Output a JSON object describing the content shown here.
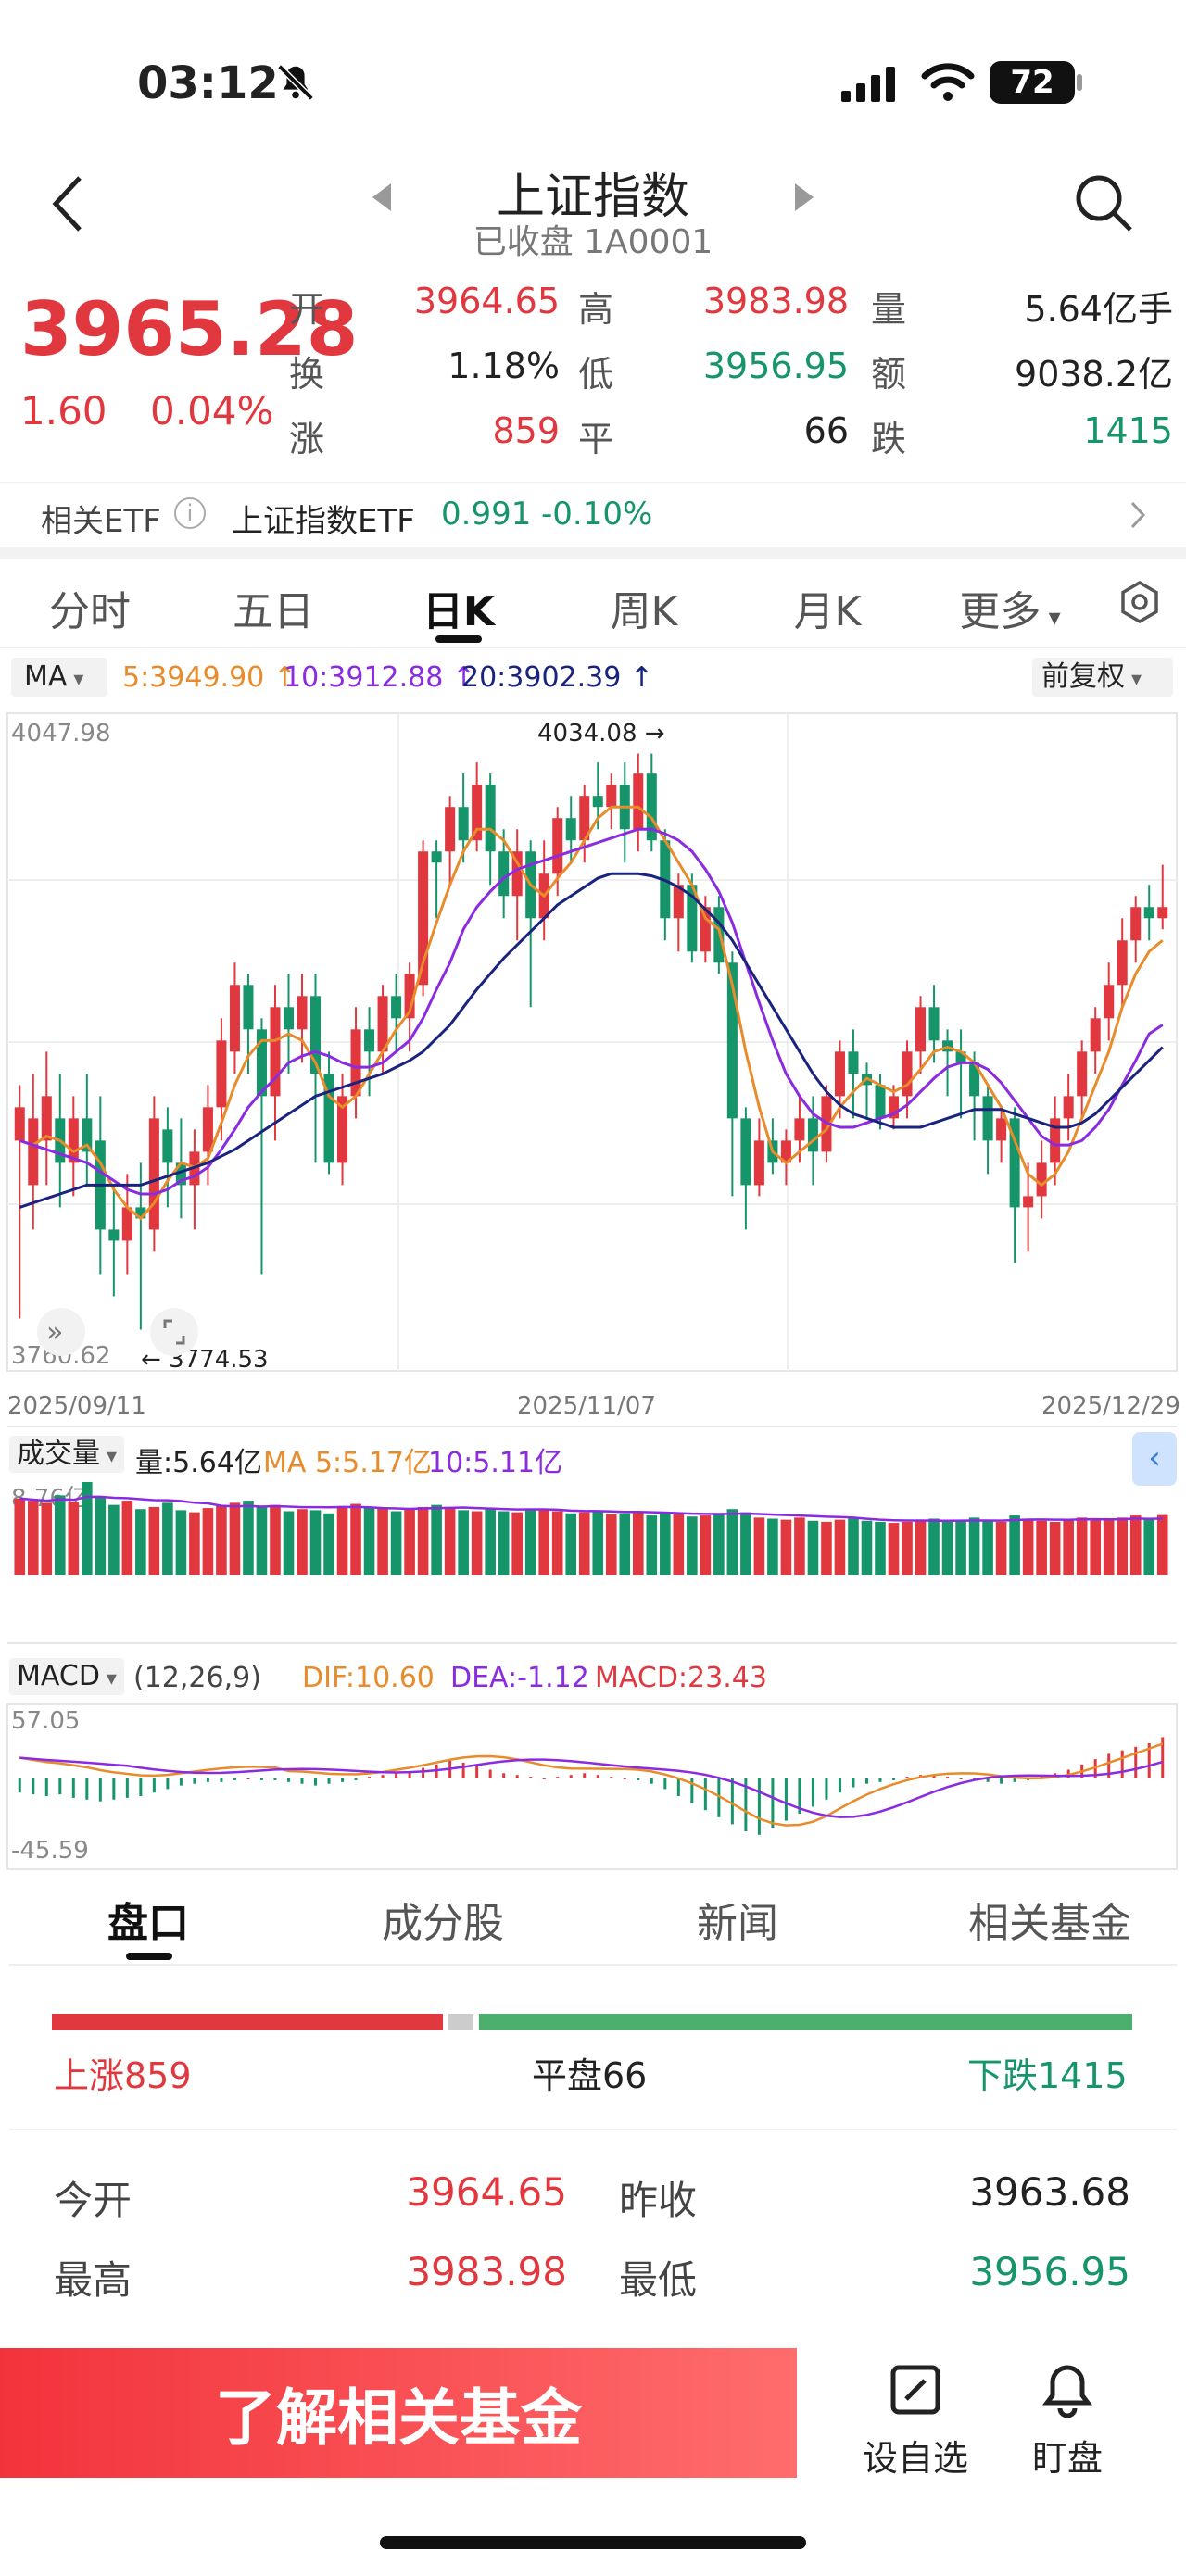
{
  "status": {
    "time": "03:12",
    "battery": "72"
  },
  "header": {
    "title": "上证指数",
    "subtitle": "已收盘 1A0001"
  },
  "quote": {
    "price": "3965.28",
    "change": "1.60",
    "change_pct": "0.04%",
    "open_label": "开",
    "open": "3964.65",
    "high_label": "高",
    "high": "3983.98",
    "volume_label": "量",
    "volume": "5.64亿手",
    "turnover_label": "换",
    "turnover": "1.18%",
    "low_label": "低",
    "low": "3956.95",
    "amount_label": "额",
    "amount": "9038.2亿",
    "up_label": "涨",
    "up": "859",
    "flat_label": "平",
    "flat": "66",
    "down_label": "跌",
    "down": "1415"
  },
  "etf": {
    "label": "相关ETF",
    "name": "上证指数ETF",
    "price": "0.991",
    "pct": "-0.10%"
  },
  "tabs": [
    "分时",
    "五日",
    "日K",
    "周K",
    "月K",
    "更多"
  ],
  "chart_toolbar": {
    "ma_label": "MA",
    "ma5": "5:3949.90",
    "ma10": "10:3912.88",
    "ma20": "20:3902.39",
    "adjust": "前复权"
  },
  "kline": {
    "y_top": "4047.98",
    "y_bottom": "3760.62",
    "max_label": "4034.08",
    "min_label": "3774.53",
    "dates": [
      "2025/09/11",
      "2025/11/07",
      "2025/12/29"
    ]
  },
  "volume_panel": {
    "label": "成交量",
    "vol": "量:5.64亿",
    "ma5": "MA 5:5.17亿",
    "ma10": "10:5.11亿",
    "y_top": "8.76亿"
  },
  "macd_panel": {
    "label": "MACD",
    "params": "(12,26,9)",
    "dif": "DIF:10.60",
    "dea": "DEA:-1.12",
    "macd": "MACD:23.43",
    "y_top": "57.05",
    "y_bottom": "-45.59"
  },
  "subtabs": [
    "盘口",
    "成分股",
    "新闻",
    "相关基金"
  ],
  "breadth": {
    "up": "上涨859",
    "flat": "平盘66",
    "down": "下跌1415"
  },
  "stats": {
    "open_label": "今开",
    "open": "3964.65",
    "prev_label": "昨收",
    "prev": "3963.68",
    "high_label": "最高",
    "high": "3983.98",
    "low_label": "最低",
    "low": "3956.95"
  },
  "bottom": {
    "fund_button": "了解相关基金",
    "watch": "设自选",
    "monitor": "盯盘"
  },
  "colors": {
    "up": "#e0383e",
    "down": "#16956b",
    "ma5": "#e88b2a",
    "ma10": "#8a2be2",
    "ma20": "#1a237e"
  },
  "chart_data": {
    "type": "candlestick",
    "dates_shown": [
      "2025/09/11",
      "2025/11/07",
      "2025/12/29"
    ],
    "ylim": [
      3760.62,
      4047.98
    ],
    "candles": [
      [
        3860,
        3875,
        3780,
        3885
      ],
      [
        3840,
        3870,
        3820,
        3890
      ],
      [
        3860,
        3880,
        3840,
        3900
      ],
      [
        3870,
        3850,
        3830,
        3890
      ],
      [
        3850,
        3870,
        3835,
        3880
      ],
      [
        3870,
        3855,
        3840,
        3890
      ],
      [
        3860,
        3820,
        3800,
        3880
      ],
      [
        3820,
        3815,
        3790,
        3840
      ],
      [
        3815,
        3830,
        3800,
        3845
      ],
      [
        3830,
        3825,
        3775,
        3850
      ],
      [
        3820,
        3870,
        3810,
        3880
      ],
      [
        3865,
        3850,
        3830,
        3875
      ],
      [
        3850,
        3840,
        3825,
        3870
      ],
      [
        3840,
        3855,
        3820,
        3865
      ],
      [
        3855,
        3875,
        3840,
        3885
      ],
      [
        3875,
        3905,
        3860,
        3915
      ],
      [
        3900,
        3930,
        3890,
        3940
      ],
      [
        3930,
        3910,
        3890,
        3935
      ],
      [
        3910,
        3880,
        3800,
        3915
      ],
      [
        3880,
        3920,
        3860,
        3930
      ],
      [
        3920,
        3910,
        3890,
        3935
      ],
      [
        3910,
        3925,
        3895,
        3935
      ],
      [
        3925,
        3890,
        3850,
        3935
      ],
      [
        3890,
        3850,
        3845,
        3900
      ],
      [
        3850,
        3880,
        3840,
        3890
      ],
      [
        3880,
        3910,
        3870,
        3920
      ],
      [
        3910,
        3900,
        3880,
        3920
      ],
      [
        3900,
        3925,
        3890,
        3930
      ],
      [
        3925,
        3915,
        3900,
        3935
      ],
      [
        3915,
        3935,
        3900,
        3940
      ],
      [
        3930,
        3990,
        3925,
        3995
      ],
      [
        3990,
        3985,
        3960,
        3995
      ],
      [
        3990,
        4010,
        3975,
        4015
      ],
      [
        4010,
        3995,
        3985,
        4025
      ],
      [
        3995,
        4020,
        3990,
        4030
      ],
      [
        4020,
        3990,
        3975,
        4025
      ],
      [
        3990,
        3970,
        3960,
        4000
      ],
      [
        3970,
        3990,
        3950,
        4000
      ],
      [
        3990,
        3960,
        3920,
        3995
      ],
      [
        3960,
        3980,
        3950,
        3995
      ],
      [
        3980,
        4005,
        3970,
        4010
      ],
      [
        4005,
        3995,
        3985,
        4015
      ],
      [
        3995,
        4015,
        3985,
        4020
      ],
      [
        4015,
        4010,
        4000,
        4030
      ],
      [
        4010,
        4020,
        4000,
        4025
      ],
      [
        4020,
        4000,
        3985,
        4030
      ],
      [
        4000,
        4025,
        3990,
        4034
      ],
      [
        4025,
        3995,
        3990,
        4034
      ],
      [
        3995,
        3960,
        3950,
        4000
      ],
      [
        3960,
        3975,
        3945,
        3980
      ],
      [
        3975,
        3945,
        3940,
        3980
      ],
      [
        3945,
        3965,
        3940,
        3970
      ],
      [
        3965,
        3940,
        3935,
        3970
      ],
      [
        3940,
        3870,
        3835,
        3945
      ],
      [
        3870,
        3840,
        3820,
        3875
      ],
      [
        3840,
        3860,
        3835,
        3870
      ],
      [
        3860,
        3850,
        3845,
        3870
      ],
      [
        3850,
        3860,
        3840,
        3865
      ],
      [
        3860,
        3870,
        3850,
        3880
      ],
      [
        3870,
        3855,
        3840,
        3880
      ],
      [
        3855,
        3880,
        3850,
        3885
      ],
      [
        3880,
        3900,
        3870,
        3905
      ],
      [
        3900,
        3890,
        3870,
        3910
      ],
      [
        3890,
        3885,
        3870,
        3895
      ],
      [
        3885,
        3870,
        3865,
        3890
      ],
      [
        3870,
        3880,
        3865,
        3885
      ],
      [
        3880,
        3900,
        3870,
        3905
      ],
      [
        3900,
        3920,
        3890,
        3925
      ],
      [
        3920,
        3905,
        3895,
        3930
      ],
      [
        3905,
        3900,
        3880,
        3910
      ],
      [
        3900,
        3895,
        3870,
        3910
      ],
      [
        3895,
        3880,
        3860,
        3900
      ],
      [
        3880,
        3860,
        3845,
        3885
      ],
      [
        3860,
        3870,
        3850,
        3875
      ],
      [
        3870,
        3830,
        3805,
        3875
      ],
      [
        3830,
        3835,
        3810,
        3850
      ],
      [
        3835,
        3850,
        3825,
        3860
      ],
      [
        3850,
        3870,
        3840,
        3880
      ],
      [
        3870,
        3880,
        3860,
        3890
      ],
      [
        3880,
        3900,
        3870,
        3905
      ],
      [
        3900,
        3915,
        3890,
        3920
      ],
      [
        3915,
        3930,
        3905,
        3940
      ],
      [
        3930,
        3950,
        3920,
        3960
      ],
      [
        3950,
        3965,
        3940,
        3970
      ],
      [
        3965,
        3960,
        3950,
        3975
      ],
      [
        3960,
        3965,
        3955,
        3984
      ]
    ],
    "ma5": [
      3860,
      3858,
      3862,
      3860,
      3855,
      3858,
      3850,
      3838,
      3830,
      3825,
      3832,
      3842,
      3850,
      3848,
      3852,
      3868,
      3885,
      3898,
      3905,
      3905,
      3908,
      3905,
      3895,
      3880,
      3875,
      3880,
      3890,
      3900,
      3910,
      3918,
      3940,
      3958,
      3975,
      3990,
      4000,
      4000,
      3995,
      3985,
      3975,
      3970,
      3978,
      3985,
      3995,
      4005,
      4010,
      4010,
      4010,
      4005,
      3995,
      3985,
      3975,
      3960,
      3955,
      3930,
      3900,
      3875,
      3855,
      3850,
      3855,
      3860,
      3865,
      3875,
      3882,
      3888,
      3885,
      3882,
      3885,
      3892,
      3900,
      3902,
      3900,
      3895,
      3885,
      3875,
      3860,
      3845,
      3840,
      3845,
      3855,
      3870,
      3885,
      3900,
      3920,
      3935,
      3945,
      3950
    ],
    "ma10": [
      3860,
      3858,
      3856,
      3854,
      3852,
      3850,
      3846,
      3842,
      3838,
      3836,
      3836,
      3838,
      3842,
      3844,
      3848,
      3856,
      3865,
      3875,
      3882,
      3888,
      3895,
      3898,
      3900,
      3898,
      3895,
      3893,
      3893,
      3895,
      3900,
      3905,
      3915,
      3928,
      3940,
      3955,
      3965,
      3972,
      3978,
      3982,
      3984,
      3986,
      3988,
      3990,
      3992,
      3994,
      3996,
      3998,
      4000,
      4000,
      3998,
      3995,
      3990,
      3982,
      3972,
      3958,
      3940,
      3922,
      3905,
      3890,
      3880,
      3872,
      3868,
      3866,
      3866,
      3868,
      3870,
      3872,
      3876,
      3882,
      3888,
      3893,
      3895,
      3895,
      3892,
      3886,
      3878,
      3870,
      3862,
      3858,
      3858,
      3860,
      3866,
      3874,
      3885,
      3896,
      3908,
      3912
    ],
    "ma20": [
      3830,
      3832,
      3834,
      3836,
      3838,
      3840,
      3840,
      3840,
      3840,
      3840,
      3842,
      3844,
      3846,
      3848,
      3850,
      3853,
      3856,
      3860,
      3864,
      3868,
      3872,
      3876,
      3880,
      3882,
      3884,
      3886,
      3888,
      3890,
      3893,
      3896,
      3900,
      3906,
      3912,
      3920,
      3928,
      3935,
      3942,
      3948,
      3954,
      3960,
      3966,
      3970,
      3974,
      3978,
      3980,
      3980,
      3980,
      3979,
      3977,
      3974,
      3970,
      3964,
      3958,
      3950,
      3940,
      3930,
      3920,
      3910,
      3900,
      3890,
      3882,
      3876,
      3872,
      3870,
      3868,
      3866,
      3866,
      3866,
      3868,
      3870,
      3872,
      3874,
      3874,
      3874,
      3872,
      3870,
      3868,
      3866,
      3866,
      3868,
      3872,
      3878,
      3884,
      3890,
      3896,
      3902
    ],
    "volume": [
      7.2,
      7.0,
      6.8,
      7.5,
      6.9,
      8.76,
      7.4,
      6.6,
      7.0,
      6.2,
      6.4,
      6.8,
      6.1,
      5.9,
      6.3,
      6.5,
      6.8,
      7.0,
      6.4,
      6.6,
      6.0,
      6.2,
      6.1,
      5.8,
      6.5,
      6.7,
      6.4,
      6.3,
      6.0,
      6.2,
      6.4,
      6.6,
      6.3,
      6.1,
      6.0,
      6.2,
      6.0,
      5.9,
      6.1,
      6.2,
      6.0,
      5.8,
      5.9,
      6.0,
      5.7,
      5.8,
      5.9,
      5.6,
      5.8,
      5.7,
      5.5,
      5.6,
      5.8,
      6.2,
      5.9,
      5.4,
      5.3,
      5.2,
      5.4,
      5.1,
      5.0,
      5.2,
      5.3,
      5.1,
      5.0,
      4.9,
      5.0,
      5.2,
      5.3,
      5.0,
      5.1,
      5.4,
      5.2,
      5.0,
      5.6,
      5.3,
      5.1,
      5.0,
      5.2,
      5.4,
      5.3,
      5.2,
      5.4,
      5.6,
      5.3,
      5.64
    ],
    "macd_hist": [
      -8,
      -9,
      -10,
      -9,
      -11,
      -12,
      -13,
      -12,
      -11,
      -10,
      -8,
      -6,
      -4,
      -3,
      -2,
      -2,
      -1,
      0,
      -1,
      -1,
      -2,
      -3,
      -4,
      -3,
      -2,
      -1,
      1,
      2,
      3,
      4,
      6,
      8,
      10,
      9,
      7,
      5,
      3,
      2,
      1,
      0,
      1,
      2,
      3,
      2,
      1,
      0,
      -1,
      -3,
      -6,
      -10,
      -14,
      -18,
      -22,
      -26,
      -30,
      -32,
      -28,
      -24,
      -20,
      -16,
      -12,
      -8,
      -5,
      -3,
      -2,
      -1,
      1,
      2,
      2,
      1,
      0,
      -1,
      -2,
      -3,
      -2,
      -1,
      1,
      3,
      5,
      8,
      11,
      14,
      16,
      18,
      20,
      23.43
    ]
  }
}
